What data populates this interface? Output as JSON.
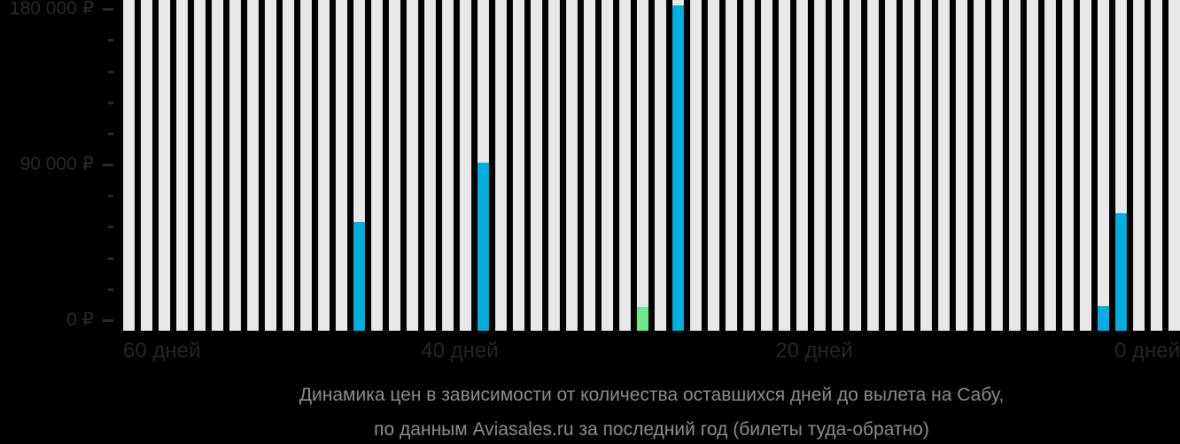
{
  "chart_data": {
    "type": "bar",
    "title": "Динамика цен в зависимости от количества оставшихся дней до вылета на Сабу,",
    "subtitle": "по данным Aviasales.ru за последний год (билеты туда-обратно)",
    "y_axis": {
      "unit": "₽",
      "ylim": [
        0,
        180000
      ],
      "minor_step": 18000,
      "major_ticks": [
        {
          "value": 180000,
          "label": "180 000 ₽"
        },
        {
          "value": 90000,
          "label": "90 000 ₽"
        },
        {
          "value": 0,
          "label": "0 ₽"
        }
      ]
    },
    "x_axis": {
      "unit": "дней до вылета",
      "tick_labels": [
        "60 дней",
        "40 дней",
        "20 дней",
        "0 дней"
      ],
      "direction": "days remaining, decreasing left to right"
    },
    "bars": {
      "count": 60,
      "first_day": 59,
      "last_day": 0,
      "background_color": "#e8e8e8"
    },
    "points": [
      {
        "days_before_departure": 46,
        "price_rub": 57000,
        "color": "#00aee0"
      },
      {
        "days_before_departure": 39,
        "price_rub": 91000,
        "color": "#00aee0"
      },
      {
        "days_before_departure": 30,
        "price_rub": 7700,
        "color": "#6de88a"
      },
      {
        "days_before_departure": 28,
        "price_rub": 182000,
        "color": "#00aee0"
      },
      {
        "days_before_departure": 4,
        "price_rub": 8200,
        "color": "#00aee0"
      },
      {
        "days_before_departure": 3,
        "price_rub": 62000,
        "color": "#00aee0"
      }
    ],
    "colors": {
      "background": "#000000",
      "bar_background": "#e8e8e8",
      "price_bar_blue": "#00aee0",
      "price_bar_green": "#6de88a",
      "axis_text": "#2a2a2a",
      "caption_text": "#8d8d8d"
    }
  }
}
